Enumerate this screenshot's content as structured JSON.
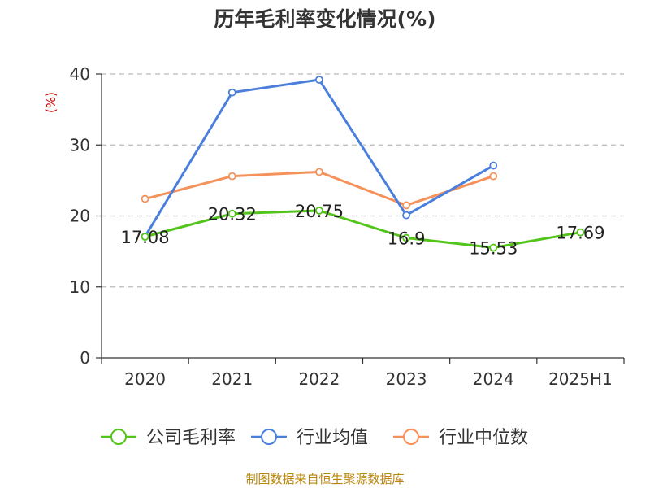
{
  "chart_data": {
    "type": "line",
    "title": "历年毛利率变化情况(%)",
    "ylabel": "(%)",
    "xlabel": "",
    "categories": [
      "2020",
      "2021",
      "2022",
      "2023",
      "2024",
      "2025H1"
    ],
    "ylim": [
      0,
      40
    ],
    "yticks": [
      0,
      10,
      20,
      30,
      40
    ],
    "grid": true,
    "legend_position": "bottom",
    "series": [
      {
        "name": "公司毛利率",
        "color": "#52c41a",
        "values": [
          17.08,
          20.32,
          20.75,
          16.9,
          15.53,
          17.69
        ],
        "labels": [
          "17.08",
          "20.32",
          "20.75",
          "16.9",
          "15.53",
          "17.69"
        ]
      },
      {
        "name": "行业均值",
        "color": "#4a7fdb",
        "values": [
          17.1,
          37.4,
          39.2,
          20.1,
          27.1,
          null
        ]
      },
      {
        "name": "行业中位数",
        "color": "#f5925b",
        "values": [
          22.4,
          25.6,
          26.2,
          21.5,
          25.6,
          null
        ]
      }
    ]
  },
  "footer": {
    "source": "制图数据来自恒生聚源数据库"
  }
}
